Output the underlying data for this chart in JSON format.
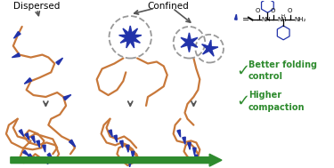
{
  "dispersed_label": "Dispersed",
  "confined_label": "Confined",
  "benefit1": "Better folding\ncontrol",
  "benefit2": "Higher\ncompaction",
  "check_color": "#2e8b2e",
  "arrow_color": "#2e8b2e",
  "chain_color": "#c8783a",
  "motif_color": "#2233aa",
  "bg_color": "#ffffff",
  "gray_arrow": "#555555",
  "circle_color": "#999999"
}
